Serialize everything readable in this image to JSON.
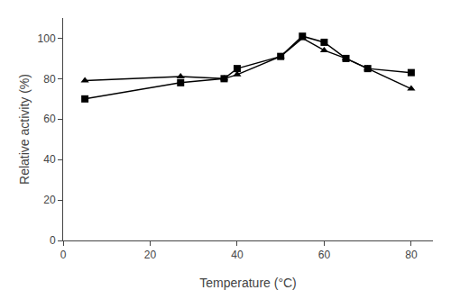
{
  "chart_data": {
    "type": "line",
    "xlabel": "Temperature (°C)",
    "ylabel": "Relative activity (%)",
    "x": [
      5,
      27,
      37,
      40,
      50,
      55,
      60,
      65,
      70,
      80
    ],
    "series": [
      {
        "color": "#000000",
        "marker": "triangle",
        "line_style": "solid",
        "values": [
          79,
          81,
          80,
          82,
          91,
          100,
          94,
          90,
          85,
          75
        ]
      },
      {
        "color": "#000000",
        "marker": "square",
        "line_style": "solid",
        "values": [
          70,
          78,
          80,
          85,
          91,
          101,
          98,
          90,
          85,
          83
        ]
      }
    ],
    "xlim": [
      0,
      85
    ],
    "ylim": [
      0,
      110
    ],
    "xticks": [
      0,
      20,
      40,
      60,
      80
    ],
    "yticks": [
      0,
      20,
      40,
      60,
      80,
      100
    ],
    "grid": false,
    "legend": false
  }
}
